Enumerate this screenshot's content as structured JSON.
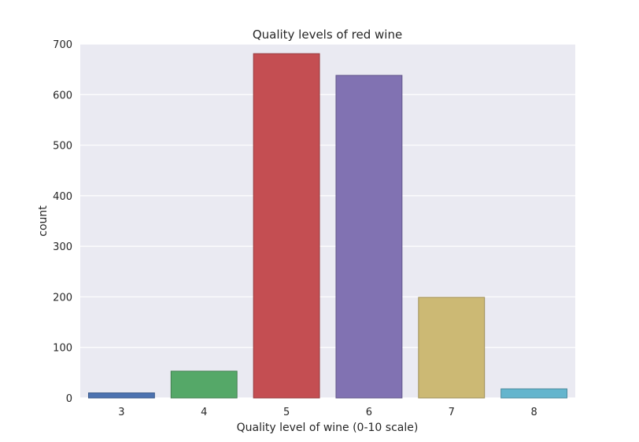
{
  "chart_data": {
    "type": "bar",
    "title": "Quality levels of red wine",
    "xlabel": "Quality level of wine (0-10 scale)",
    "ylabel": "count",
    "categories": [
      "3",
      "4",
      "5",
      "6",
      "7",
      "8"
    ],
    "values": [
      10,
      53,
      681,
      638,
      199,
      18
    ],
    "ylim": [
      0,
      700
    ],
    "yticks": [
      0,
      100,
      200,
      300,
      400,
      500,
      600,
      700
    ],
    "grid": true,
    "colors": [
      "#4c72b0",
      "#55a868",
      "#c44e52",
      "#8172b2",
      "#ccb974",
      "#64b5cd"
    ],
    "edge_colors": [
      "#3b5a8a",
      "#427f50",
      "#963b3e",
      "#62568a",
      "#9e8f58",
      "#4d8b9e"
    ]
  }
}
